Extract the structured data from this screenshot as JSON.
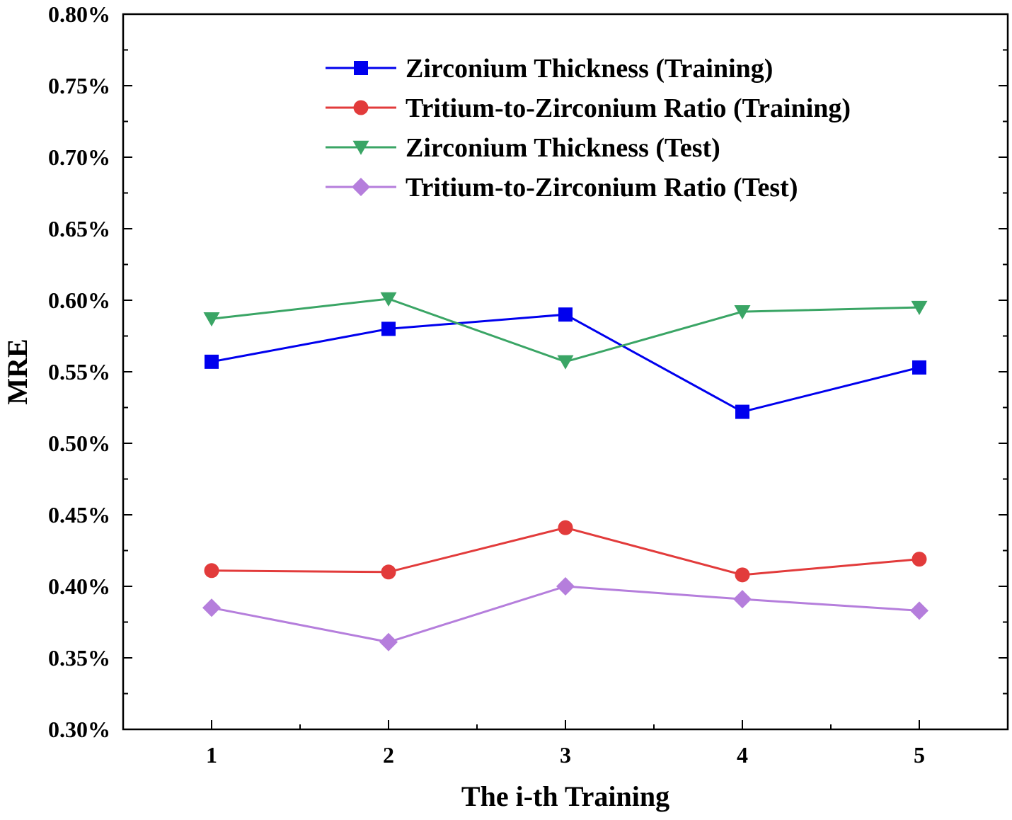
{
  "chart_data": {
    "type": "line",
    "title": "",
    "xlabel": "The i-th Training",
    "ylabel": "MRE",
    "x": [
      1,
      2,
      3,
      4,
      5
    ],
    "x_tick_labels": [
      "1",
      "2",
      "3",
      "4",
      "5"
    ],
    "xlim": [
      0.5,
      5.5
    ],
    "ylim": [
      0.3,
      0.8
    ],
    "y_tick_values": [
      0.3,
      0.35,
      0.4,
      0.45,
      0.5,
      0.55,
      0.6,
      0.65,
      0.7,
      0.75,
      0.8
    ],
    "y_tick_labels": [
      "0.30%",
      "0.35%",
      "0.40%",
      "0.45%",
      "0.50%",
      "0.55%",
      "0.60%",
      "0.65%",
      "0.70%",
      "0.75%",
      "0.80%"
    ],
    "y_unit": "%",
    "grid": false,
    "legend_position": "top-center",
    "series": [
      {
        "name": "Zirconium Thickness (Training)",
        "color": "#0000ee",
        "marker": "square",
        "values": [
          0.557,
          0.58,
          0.59,
          0.522,
          0.553
        ]
      },
      {
        "name": "Tritium-to-Zirconium Ratio (Training)",
        "color": "#e23b3b",
        "marker": "circle",
        "values": [
          0.411,
          0.41,
          0.441,
          0.408,
          0.419
        ]
      },
      {
        "name": "Zirconium Thickness (Test)",
        "color": "#3aa565",
        "marker": "triangle-down",
        "values": [
          0.587,
          0.601,
          0.557,
          0.592,
          0.595
        ]
      },
      {
        "name": "Tritium-to-Zirconium Ratio (Test)",
        "color": "#b57edc",
        "marker": "diamond",
        "values": [
          0.385,
          0.361,
          0.4,
          0.391,
          0.383
        ]
      }
    ]
  }
}
